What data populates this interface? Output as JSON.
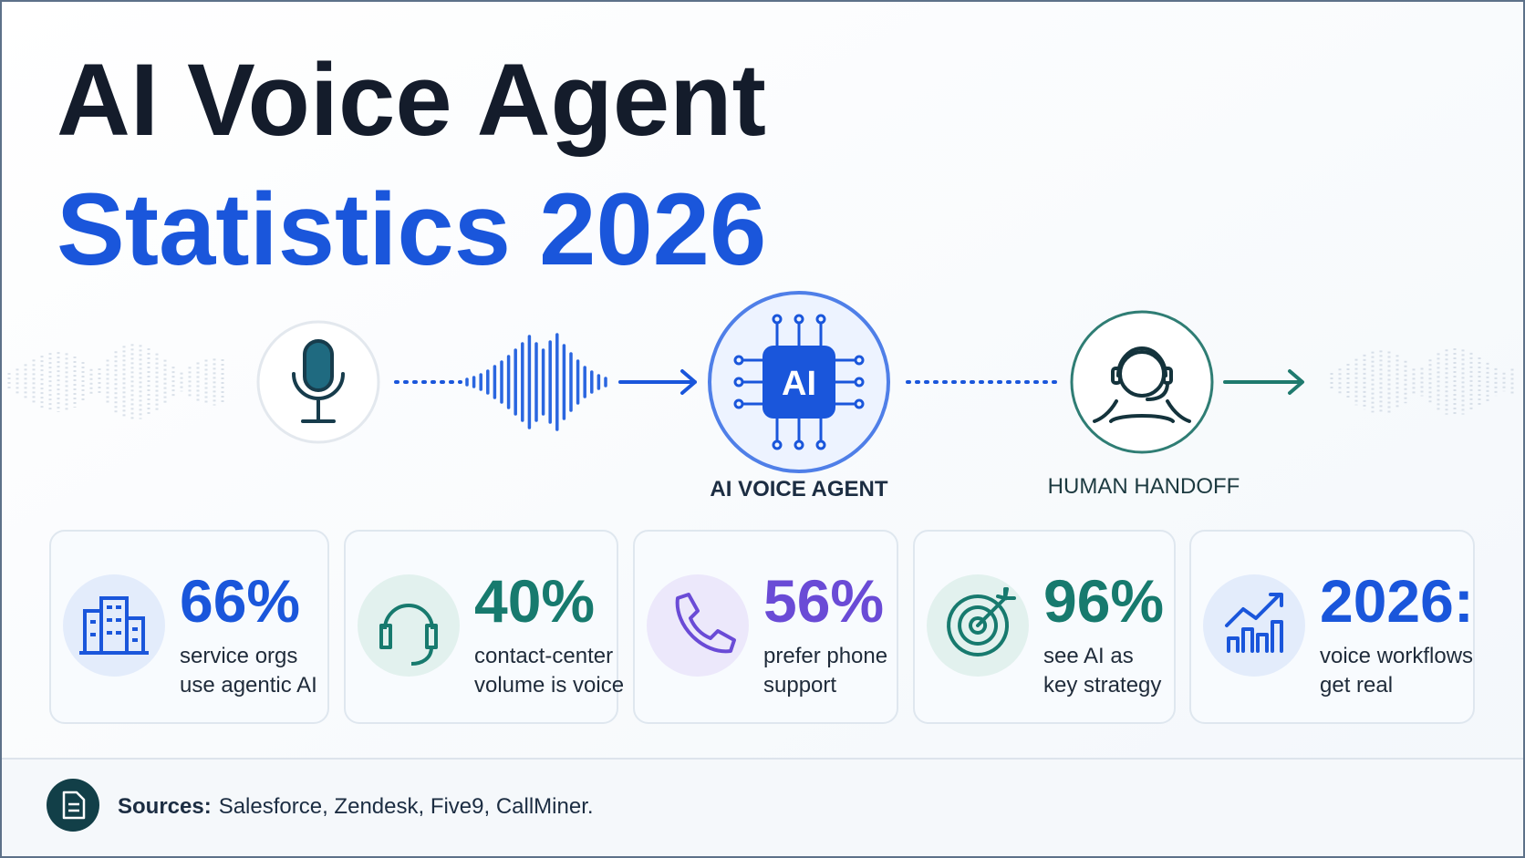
{
  "header": {
    "title_line1": "AI Voice Agent",
    "title_line2": "Statistics 2026"
  },
  "flow": {
    "chip": "AI",
    "agent_label": "AI VOICE AGENT",
    "handoff_label": "HUMAN HANDOFF"
  },
  "stats": [
    {
      "value": "66%",
      "description": [
        "service orgs",
        "use agentic AI"
      ],
      "color": "#1a56db"
    },
    {
      "value": "40%",
      "description": [
        "contact-center",
        "volume is voice"
      ],
      "color": "#177a6e"
    },
    {
      "value": "56%",
      "description": [
        "prefer phone",
        "support"
      ],
      "color": "#6a4bd6"
    },
    {
      "value": "96%",
      "description": [
        "see AI as",
        "key strategy"
      ],
      "color": "#177a6e"
    },
    {
      "value": "2026:",
      "description": [
        "voice workflows",
        "get real"
      ],
      "color": "#1a56db"
    }
  ],
  "footer": {
    "label": "Sources:",
    "text": "Salesforce, Zendesk, Five9, CallMiner."
  }
}
